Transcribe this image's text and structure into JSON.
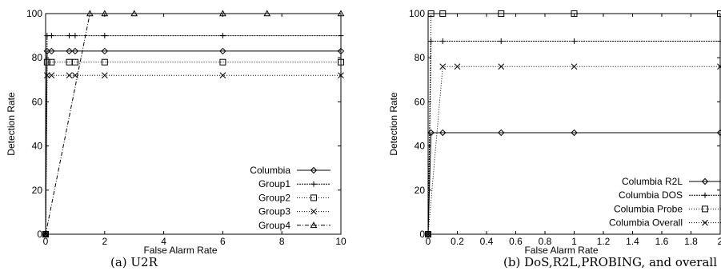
{
  "chart_data": [
    {
      "type": "line",
      "caption": "(a) U2R",
      "xlabel": "False Alarm Rate",
      "ylabel": "Detection Rate",
      "xlim": [
        0,
        10
      ],
      "ylim": [
        0,
        100
      ],
      "xticks": [
        0,
        2,
        4,
        6,
        8,
        10
      ],
      "yticks": [
        0,
        20,
        40,
        60,
        80,
        100
      ],
      "grid": false,
      "legend_position": "bottom-right",
      "series": [
        {
          "name": "Columbia",
          "marker": "diamond",
          "dash": "solid",
          "x": [
            0,
            0.05,
            0.2,
            0.8,
            1.0,
            2.0,
            6.0,
            10.0
          ],
          "y": [
            0,
            83,
            83,
            83,
            83,
            83,
            83,
            83
          ]
        },
        {
          "name": "Group1",
          "marker": "plus",
          "dash": "dense",
          "x": [
            0,
            0.05,
            0.2,
            0.8,
            1.0,
            2.0,
            6.0,
            10.0
          ],
          "y": [
            0,
            90,
            90,
            90,
            90,
            90,
            90,
            90
          ]
        },
        {
          "name": "Group2",
          "marker": "square",
          "dash": "dotted",
          "x": [
            0,
            0.05,
            0.2,
            0.8,
            1.0,
            2.0,
            6.0,
            10.0
          ],
          "y": [
            0,
            78,
            78,
            78,
            78,
            78,
            78,
            78
          ]
        },
        {
          "name": "Group3",
          "marker": "cross",
          "dash": "dotted",
          "x": [
            0,
            0.05,
            0.2,
            0.8,
            1.0,
            2.0,
            6.0,
            10.0
          ],
          "y": [
            0,
            72,
            72,
            72,
            72,
            72,
            72,
            72
          ]
        },
        {
          "name": "Group4",
          "marker": "triangle",
          "dash": "dashdot",
          "x": [
            0,
            1.5,
            2.0,
            3.0,
            6.0,
            7.5,
            10.0
          ],
          "y": [
            0,
            100,
            100,
            100,
            100,
            100,
            100
          ]
        }
      ]
    },
    {
      "type": "line",
      "caption": "(b) DoS,R2L,PROBING, and overall",
      "xlabel": "False Alarm Rate",
      "ylabel": "Detection Rate",
      "xlim": [
        0,
        2
      ],
      "ylim": [
        0,
        100
      ],
      "xticks": [
        0,
        0.2,
        0.4,
        0.6,
        0.8,
        1,
        1.2,
        1.4,
        1.6,
        1.8,
        2
      ],
      "yticks": [
        0,
        20,
        40,
        60,
        80,
        100
      ],
      "grid": false,
      "legend_position": "bottom-right",
      "series": [
        {
          "name": "Columbia R2L",
          "marker": "diamond",
          "dash": "solid",
          "x": [
            0,
            0.02,
            0.1,
            0.5,
            1.0,
            2.0
          ],
          "y": [
            0,
            46,
            46,
            46,
            46,
            46
          ]
        },
        {
          "name": "Columbia DOS",
          "marker": "plus",
          "dash": "dense",
          "x": [
            0,
            0.02,
            0.1,
            0.5,
            1.0,
            2.0
          ],
          "y": [
            0,
            87.5,
            87.5,
            87.5,
            87.5,
            87.5
          ]
        },
        {
          "name": "Columbia Probe",
          "marker": "square",
          "dash": "dotted",
          "x": [
            0,
            0.02,
            0.1,
            0.5,
            1.0,
            2.0
          ],
          "y": [
            0,
            100,
            100,
            100,
            100,
            100
          ]
        },
        {
          "name": "Columbia Overall",
          "marker": "cross",
          "dash": "dotted",
          "x": [
            0,
            0.1,
            0.2,
            0.5,
            1.0,
            2.0
          ],
          "y": [
            0,
            76,
            76,
            76,
            76,
            76
          ]
        }
      ]
    }
  ]
}
